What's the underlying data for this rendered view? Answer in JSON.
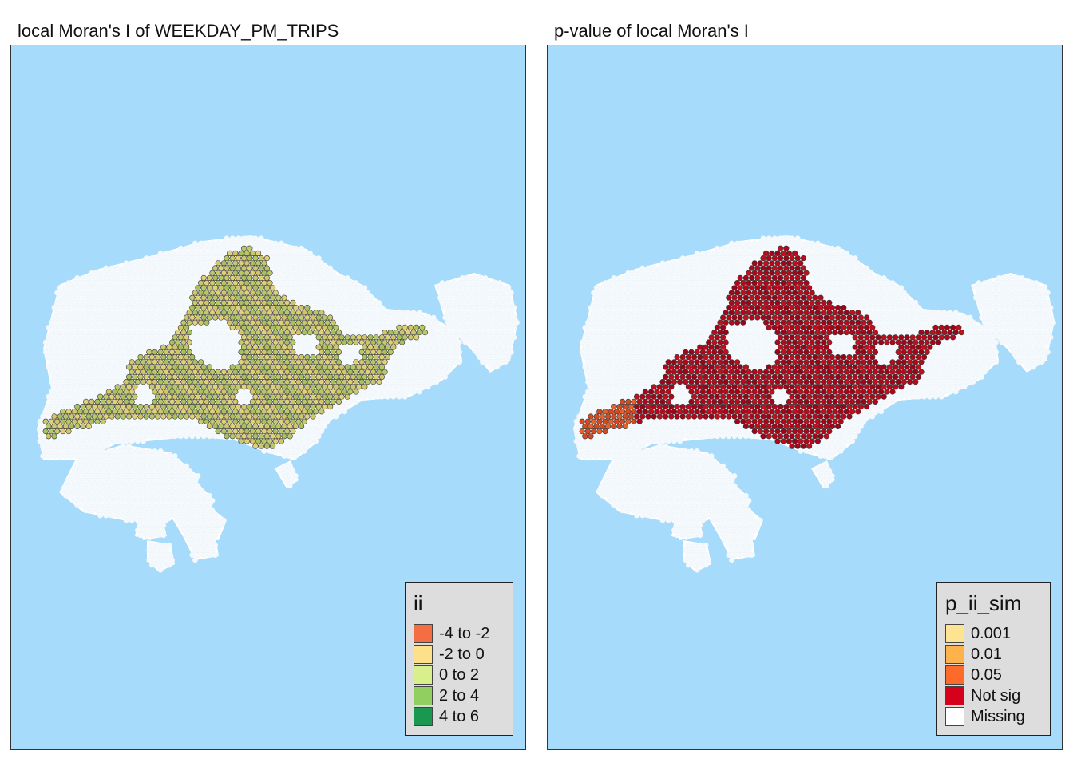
{
  "maps": [
    {
      "title": "local Moran's I of WEEKDAY_PM_TRIPS",
      "background_color": "#a6dbfb",
      "land_color": "#ffffff",
      "legend": {
        "title": "ii",
        "items": [
          {
            "label": "-4 to -2",
            "color": "#f46d43"
          },
          {
            "label": "-2 to 0",
            "color": "#fee08b"
          },
          {
            "label": "0 to 2",
            "color": "#d9ef8b"
          },
          {
            "label": "2 to 4",
            "color": "#91cf60"
          },
          {
            "label": "4 to 6",
            "color": "#1a9850"
          }
        ]
      },
      "dominant_classes": [
        "-2 to 0",
        "0 to 2"
      ],
      "hex_fill": "#c8c870"
    },
    {
      "title": "p-value of local Moran's I",
      "background_color": "#a6dbfb",
      "land_color": "#ffffff",
      "legend": {
        "title": "p_ii_sim",
        "items": [
          {
            "label": "0.001",
            "color": "#fee391"
          },
          {
            "label": "0.01",
            "color": "#feb24c"
          },
          {
            "label": "0.05",
            "color": "#fd6b2a"
          },
          {
            "label": "Not sig",
            "color": "#d7001c"
          },
          {
            "label": "Missing",
            "color": "#ffffff"
          }
        ]
      },
      "dominant_classes": [
        "Not sig"
      ],
      "hex_fill": "#b0081a"
    }
  ]
}
